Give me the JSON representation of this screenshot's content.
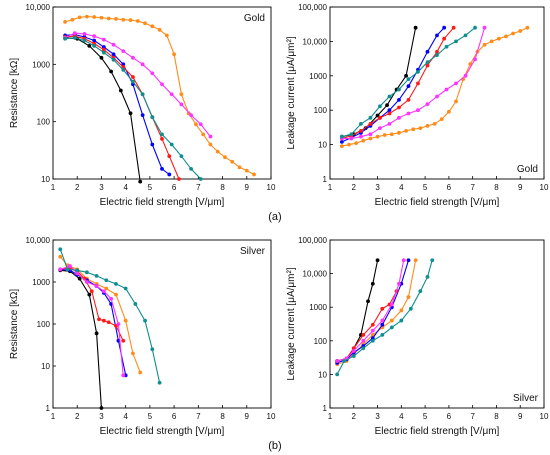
{
  "panel_labels": [
    "(a)",
    "(b)"
  ],
  "chart_data": [
    {
      "type": "line",
      "panel": "a-left",
      "annotation": "Gold",
      "xlabel": "Electric field strength [V/μm]",
      "ylabel": "Resistance [kΩ]",
      "xlim": [
        1,
        10
      ],
      "ylim": [
        10,
        10000
      ],
      "yscale": "log",
      "xticks": [
        "1",
        "2",
        "3",
        "4",
        "5",
        "6",
        "7",
        "8",
        "9",
        "10"
      ],
      "yticks": [
        "10",
        "100",
        "1000",
        "10,000"
      ],
      "annotation_position": "top-right",
      "grid": false,
      "series": [
        {
          "color": "#000000",
          "x": [
            1.5,
            2.0,
            2.5,
            3.0,
            3.4,
            3.8,
            4.2,
            4.6
          ],
          "y": [
            2900,
            2800,
            2100,
            1300,
            750,
            350,
            140,
            9
          ]
        },
        {
          "color": "#ff8c1a",
          "x": [
            1.5,
            1.8,
            2.1,
            2.4,
            2.7,
            3.0,
            3.3,
            3.6,
            3.9,
            4.2,
            4.5,
            4.8,
            5.1,
            5.4,
            5.7,
            6.0,
            6.3,
            6.6,
            6.9,
            7.2,
            7.5,
            7.8,
            8.1,
            8.4,
            8.7,
            9.0,
            9.3
          ],
          "y": [
            5500,
            6000,
            6600,
            6800,
            6700,
            6500,
            6300,
            6200,
            6000,
            5900,
            5700,
            5200,
            4600,
            4000,
            3200,
            1500,
            300,
            140,
            90,
            60,
            40,
            30,
            24,
            20,
            16,
            14,
            12
          ]
        },
        {
          "color": "#0000ff",
          "x": [
            1.5,
            1.9,
            2.3,
            2.7,
            3.1,
            3.5,
            3.9,
            4.3,
            4.7,
            5.1,
            5.5,
            5.8
          ],
          "y": [
            3200,
            3300,
            3000,
            2600,
            2000,
            1500,
            1000,
            450,
            130,
            40,
            15,
            12
          ]
        },
        {
          "color": "#ff1a1a",
          "x": [
            1.5,
            1.9,
            2.3,
            2.7,
            3.1,
            3.5,
            3.9,
            4.3,
            4.7,
            5.1,
            5.5,
            5.8,
            6.2
          ],
          "y": [
            3000,
            3100,
            2800,
            2300,
            1800,
            1300,
            900,
            600,
            300,
            120,
            50,
            25,
            10
          ]
        },
        {
          "color": "#ff33ff",
          "x": [
            1.5,
            1.9,
            2.3,
            2.7,
            3.1,
            3.5,
            3.9,
            4.3,
            4.7,
            5.1,
            5.5,
            5.9,
            6.3,
            6.7,
            7.1,
            7.5
          ],
          "y": [
            2900,
            3500,
            3400,
            3100,
            2700,
            2200,
            1700,
            1300,
            1000,
            700,
            450,
            300,
            200,
            130,
            90,
            55
          ]
        },
        {
          "color": "#0f8f8f",
          "x": [
            1.5,
            1.9,
            2.3,
            2.7,
            3.1,
            3.5,
            3.9,
            4.3,
            4.7,
            5.1,
            5.5,
            5.9,
            6.3,
            6.7,
            7.1
          ],
          "y": [
            2800,
            2900,
            2600,
            2100,
            1600,
            1200,
            800,
            500,
            300,
            120,
            60,
            40,
            25,
            15,
            10
          ]
        }
      ]
    },
    {
      "type": "line",
      "panel": "a-right",
      "annotation": "Gold",
      "xlabel": "Electric field strength [V/μm]",
      "ylabel": "Leakage current [μA/μm²]",
      "xlim": [
        1,
        10
      ],
      "ylim": [
        1,
        100000
      ],
      "yscale": "log",
      "xticks": [
        "1",
        "2",
        "3",
        "4",
        "5",
        "6",
        "7",
        "8",
        "9",
        "10"
      ],
      "yticks": [
        "1",
        "10",
        "100",
        "1000",
        "10,000",
        "100,000"
      ],
      "annotation_position": "bottom-right",
      "grid": false,
      "series": [
        {
          "color": "#000000",
          "x": [
            1.5,
            2.0,
            2.5,
            3.0,
            3.4,
            3.8,
            4.2,
            4.6
          ],
          "y": [
            17,
            20,
            30,
            70,
            140,
            400,
            1000,
            25000
          ]
        },
        {
          "color": "#ff8c1a",
          "x": [
            1.5,
            1.8,
            2.1,
            2.4,
            2.7,
            3.0,
            3.3,
            3.6,
            3.9,
            4.2,
            4.5,
            4.8,
            5.1,
            5.4,
            5.7,
            6.0,
            6.3,
            6.6,
            6.9,
            7.2,
            7.5,
            7.8,
            8.1,
            8.4,
            8.7,
            9.0,
            9.3
          ],
          "y": [
            9,
            10,
            11,
            13,
            15,
            17,
            19,
            20,
            22,
            25,
            28,
            30,
            35,
            40,
            55,
            90,
            180,
            800,
            2200,
            5000,
            8000,
            10000,
            12000,
            14000,
            17000,
            20000,
            25000
          ]
        },
        {
          "color": "#0000ff",
          "x": [
            1.5,
            1.9,
            2.3,
            2.7,
            3.1,
            3.5,
            3.9,
            4.3,
            4.7,
            5.1,
            5.5,
            5.8
          ],
          "y": [
            12,
            16,
            22,
            35,
            60,
            100,
            200,
            500,
            1500,
            5000,
            15000,
            25000
          ]
        },
        {
          "color": "#ff1a1a",
          "x": [
            1.5,
            1.9,
            2.3,
            2.7,
            3.1,
            3.5,
            3.9,
            4.3,
            4.7,
            5.1,
            5.5,
            5.8,
            6.2
          ],
          "y": [
            15,
            18,
            25,
            40,
            60,
            80,
            120,
            200,
            600,
            2000,
            5000,
            12000,
            25000
          ]
        },
        {
          "color": "#ff33ff",
          "x": [
            1.5,
            1.9,
            2.3,
            2.7,
            3.1,
            3.5,
            3.9,
            4.3,
            4.7,
            5.1,
            5.5,
            5.9,
            6.3,
            6.7,
            7.1,
            7.5
          ],
          "y": [
            15,
            15,
            17,
            20,
            30,
            40,
            60,
            80,
            100,
            150,
            250,
            400,
            600,
            1000,
            3000,
            25000
          ]
        },
        {
          "color": "#0f8f8f",
          "x": [
            1.5,
            1.9,
            2.3,
            2.7,
            3.1,
            3.5,
            3.9,
            4.3,
            4.7,
            5.1,
            5.5,
            5.9,
            6.3,
            6.7,
            7.1
          ],
          "y": [
            17,
            20,
            40,
            60,
            130,
            250,
            400,
            800,
            1300,
            2500,
            4000,
            7000,
            10000,
            15000,
            25000
          ]
        }
      ]
    },
    {
      "type": "line",
      "panel": "b-left",
      "annotation": "Silver",
      "xlabel": "Electric field strength [V/μm]",
      "ylabel": "Resistance [kΩ]",
      "xlim": [
        1,
        10
      ],
      "ylim": [
        1,
        10000
      ],
      "yscale": "log",
      "xticks": [
        "1",
        "2",
        "3",
        "4",
        "5",
        "6",
        "7",
        "8",
        "9",
        "10"
      ],
      "yticks": [
        "1",
        "10",
        "100",
        "1000",
        "10,000"
      ],
      "annotation_position": "top-right",
      "grid": false,
      "series": [
        {
          "color": "#000000",
          "x": [
            1.3,
            1.7,
            2.1,
            2.5,
            2.8,
            3.0
          ],
          "y": [
            1900,
            1800,
            1200,
            500,
            60,
            1
          ]
        },
        {
          "color": "#ff8c1a",
          "x": [
            1.3,
            1.6,
            2.0,
            2.4,
            2.8,
            3.2,
            3.6,
            4.0,
            4.3,
            4.6
          ],
          "y": [
            4000,
            2500,
            2000,
            1200,
            900,
            700,
            500,
            120,
            20,
            7
          ]
        },
        {
          "color": "#0000ff",
          "x": [
            1.3,
            1.7,
            2.0,
            2.4,
            2.8,
            3.1,
            3.4,
            3.7,
            4.0
          ],
          "y": [
            2000,
            1900,
            1500,
            1100,
            800,
            550,
            300,
            40,
            6
          ]
        },
        {
          "color": "#ff1a1a",
          "x": [
            1.3,
            1.7,
            2.0,
            2.3,
            2.6,
            2.9,
            3.1,
            3.3,
            3.6,
            3.9
          ],
          "y": [
            2000,
            2200,
            1800,
            1200,
            600,
            130,
            120,
            110,
            90,
            40
          ]
        },
        {
          "color": "#ff33ff",
          "x": [
            1.3,
            1.7,
            2.0,
            2.4,
            2.8,
            3.1,
            3.4,
            3.7,
            3.9
          ],
          "y": [
            2000,
            2400,
            1600,
            1000,
            800,
            600,
            400,
            100,
            6
          ]
        },
        {
          "color": "#0f8f8f",
          "x": [
            1.3,
            1.6,
            2.0,
            2.4,
            2.8,
            3.2,
            3.6,
            4.0,
            4.4,
            4.8,
            5.1,
            5.4
          ],
          "y": [
            6000,
            2000,
            1900,
            1700,
            1400,
            1100,
            900,
            700,
            300,
            120,
            25,
            4
          ]
        }
      ]
    },
    {
      "type": "line",
      "panel": "b-right",
      "annotation": "Silver",
      "xlabel": "Electric field strength [V/μm]",
      "ylabel": "Leakage current [μA/μm²]",
      "xlim": [
        1,
        10
      ],
      "ylim": [
        1,
        100000
      ],
      "yscale": "log",
      "xticks": [
        "1",
        "2",
        "3",
        "4",
        "5",
        "6",
        "7",
        "8",
        "9",
        "10"
      ],
      "yticks": [
        "1",
        "10",
        "100",
        "1000",
        "10,000",
        "100,000"
      ],
      "annotation_position": "bottom-right",
      "grid": false,
      "series": [
        {
          "color": "#000000",
          "x": [
            1.3,
            1.7,
            2.0,
            2.3,
            2.6,
            2.8,
            3.0
          ],
          "y": [
            25,
            30,
            60,
            150,
            1500,
            5000,
            25000
          ]
        },
        {
          "color": "#ff8c1a",
          "x": [
            1.3,
            1.7,
            2.0,
            2.4,
            2.8,
            3.2,
            3.6,
            4.0,
            4.3,
            4.6
          ],
          "y": [
            20,
            25,
            40,
            80,
            150,
            250,
            400,
            800,
            2000,
            25000
          ]
        },
        {
          "color": "#0000ff",
          "x": [
            1.3,
            1.7,
            2.0,
            2.4,
            2.8,
            3.2,
            3.6,
            4.0,
            4.3
          ],
          "y": [
            22,
            28,
            45,
            70,
            120,
            300,
            1000,
            5000,
            25000
          ]
        },
        {
          "color": "#ff1a1a",
          "x": [
            1.3,
            1.7,
            2.0,
            2.4,
            2.8,
            3.2,
            3.5,
            3.8
          ],
          "y": [
            25,
            30,
            60,
            150,
            300,
            900,
            1200,
            3000
          ]
        },
        {
          "color": "#ff33ff",
          "x": [
            1.3,
            1.7,
            2.0,
            2.4,
            2.8,
            3.2,
            3.6,
            3.9,
            4.1
          ],
          "y": [
            25,
            30,
            50,
            100,
            200,
            400,
            1200,
            5000,
            25000
          ]
        },
        {
          "color": "#0f8f8f",
          "x": [
            1.3,
            1.6,
            2.0,
            2.4,
            2.8,
            3.2,
            3.6,
            4.0,
            4.4,
            4.8,
            5.1,
            5.3
          ],
          "y": [
            10,
            25,
            35,
            60,
            100,
            150,
            250,
            400,
            900,
            3000,
            8000,
            25000
          ]
        }
      ]
    }
  ]
}
